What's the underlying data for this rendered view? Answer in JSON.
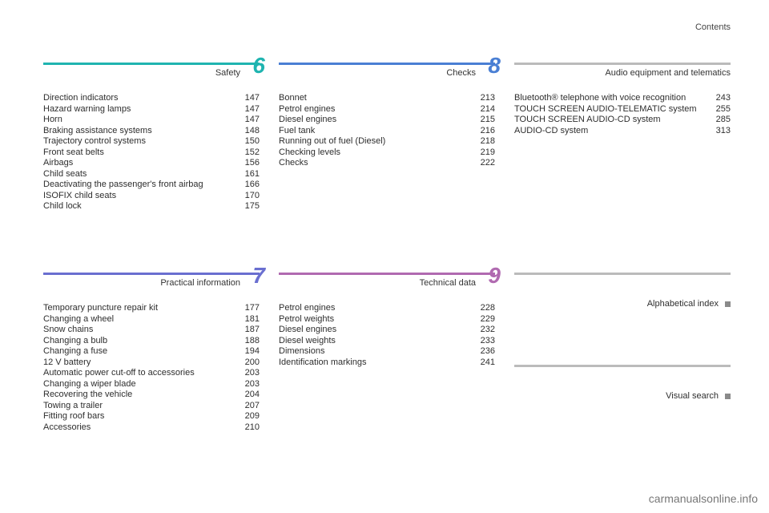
{
  "pageTitle": "Contents",
  "watermark": "carmanualsonline.info",
  "sections": {
    "safety": {
      "title": "Safety",
      "number": "6",
      "ruleColor": "#1fb4b0",
      "numberColor": "#1fb4b0",
      "items": [
        {
          "label": "Direction indicators",
          "page": "147"
        },
        {
          "label": "Hazard warning lamps",
          "page": "147"
        },
        {
          "label": "Horn",
          "page": "147"
        },
        {
          "label": "Braking assistance systems",
          "page": "148"
        },
        {
          "label": "Trajectory control systems",
          "page": "150"
        },
        {
          "label": "Front seat belts",
          "page": "152"
        },
        {
          "label": "Airbags",
          "page": "156"
        },
        {
          "label": "Child seats",
          "page": "161"
        },
        {
          "label": "Deactivating the passenger's front airbag",
          "page": "166"
        },
        {
          "label": "ISOFIX child seats",
          "page": "170"
        },
        {
          "label": "Child lock",
          "page": "175"
        }
      ]
    },
    "checks": {
      "title": "Checks",
      "number": "8",
      "ruleColor": "#4a7fd4",
      "numberColor": "#4a7fd4",
      "items": [
        {
          "label": "Bonnet",
          "page": "213"
        },
        {
          "label": "Petrol engines",
          "page": "214"
        },
        {
          "label": "Diesel engines",
          "page": "215"
        },
        {
          "label": "Fuel tank",
          "page": "216"
        },
        {
          "label": "Running out of fuel (Diesel)",
          "page": "218"
        },
        {
          "label": "Checking levels",
          "page": "219"
        },
        {
          "label": "Checks",
          "page": "222"
        }
      ]
    },
    "audio": {
      "title": "Audio equipment and telematics",
      "ruleColor": "#bbbbbb",
      "items": [
        {
          "label": "Bluetooth® telephone with voice recognition",
          "page": "243"
        },
        {
          "label": "TOUCH SCREEN AUDIO-TELEMATIC system",
          "page": "255"
        },
        {
          "label": "TOUCH SCREEN AUDIO-CD system",
          "page": "285"
        },
        {
          "label": "AUDIO-CD system",
          "page": "313"
        }
      ]
    },
    "practical": {
      "title": "Practical information",
      "number": "7",
      "ruleColor": "#6a6fd0",
      "numberColor": "#6a6fd0",
      "items": [
        {
          "label": "Temporary puncture repair kit",
          "page": "177"
        },
        {
          "label": "Changing a wheel",
          "page": "181"
        },
        {
          "label": "Snow chains",
          "page": "187"
        },
        {
          "label": "Changing a bulb",
          "page": "188"
        },
        {
          "label": "Changing a fuse",
          "page": "194"
        },
        {
          "label": "12 V battery",
          "page": "200"
        },
        {
          "label": "Automatic power cut-off to accessories",
          "page": "203"
        },
        {
          "label": "Changing a wiper blade",
          "page": "203"
        },
        {
          "label": "Recovering the vehicle",
          "page": "204"
        },
        {
          "label": "Towing a trailer",
          "page": "207"
        },
        {
          "label": "Fitting roof bars",
          "page": "209"
        },
        {
          "label": "Accessories",
          "page": "210"
        }
      ]
    },
    "technical": {
      "title": "Technical data",
      "number": "9",
      "ruleColor": "#b06ab0",
      "numberColor": "#b06ab0",
      "items": [
        {
          "label": "Petrol engines",
          "page": "228"
        },
        {
          "label": "Petrol weights",
          "page": "229"
        },
        {
          "label": "Diesel engines",
          "page": "232"
        },
        {
          "label": "Diesel weights",
          "page": "233"
        },
        {
          "label": "Dimensions",
          "page": "236"
        },
        {
          "label": "Identification markings",
          "page": "241"
        }
      ]
    },
    "alpha": {
      "title": "Alphabetical index"
    },
    "visual": {
      "title": "Visual search"
    }
  }
}
